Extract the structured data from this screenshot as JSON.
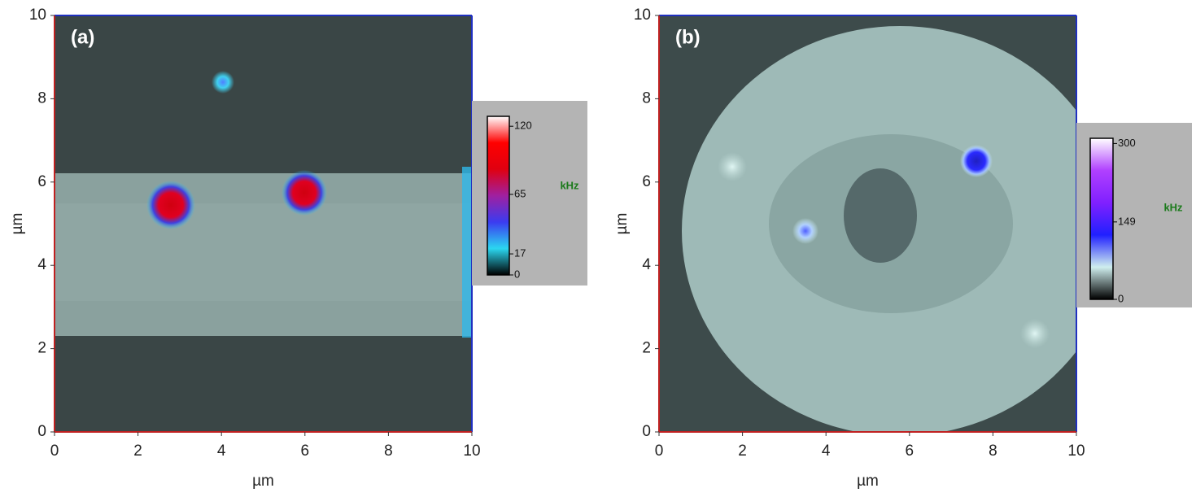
{
  "chart_data": [
    {
      "type": "heatmap",
      "panel_label": "(a)",
      "xlabel": "µm",
      "ylabel": "µm",
      "xlim": [
        0,
        10
      ],
      "ylim": [
        0,
        10
      ],
      "xticks": [
        0,
        2,
        4,
        6,
        8,
        10
      ],
      "yticks": [
        0,
        2,
        4,
        6,
        8,
        10
      ],
      "colorbar": {
        "label": "kHz",
        "lim": [
          0,
          128
        ],
        "ticks": [
          0,
          17,
          65,
          120
        ],
        "colors": [
          "#000000",
          "#2bd6f0",
          "#3b3bf0",
          "#a020a0",
          "#e00010",
          "#ff0000",
          "#ffffff"
        ]
      }
    },
    {
      "type": "heatmap",
      "panel_label": "(b)",
      "xlabel": "µm",
      "ylabel": "µm",
      "xlim": [
        0,
        10
      ],
      "ylim": [
        0,
        10
      ],
      "xticks": [
        0,
        2,
        4,
        6,
        8,
        10
      ],
      "yticks": [
        0,
        2,
        4,
        6,
        8,
        10
      ],
      "colorbar": {
        "label": "kHz",
        "lim": [
          0,
          310
        ],
        "ticks": [
          0,
          149,
          300
        ],
        "colors": [
          "#000000",
          "#cfeeee",
          "#2020ff",
          "#8020ff",
          "#b040ff",
          "#ffffff"
        ]
      }
    }
  ]
}
